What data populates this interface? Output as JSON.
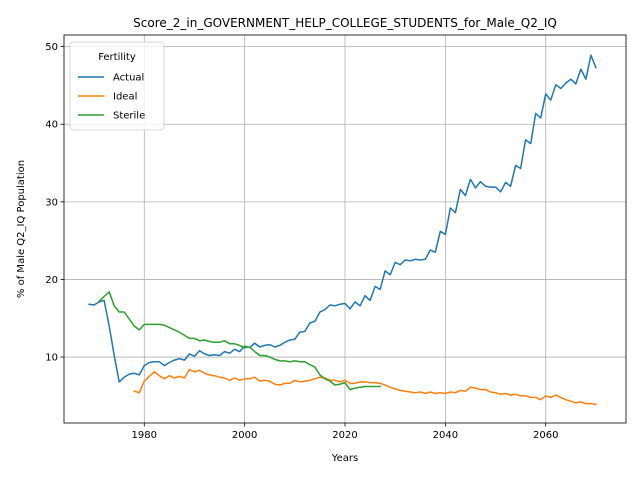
{
  "chart_data": {
    "type": "line",
    "title": "Score_2_in_GOVERNMENT_HELP_COLLEGE_STUDENTS_for_Male_Q2_IQ",
    "xlabel": "Years",
    "ylabel": "% of Male Q2_IQ Population",
    "xlim": [
      1964,
      2076
    ],
    "ylim": [
      1.5,
      51.5
    ],
    "xticks": [
      1980,
      2000,
      2020,
      2040,
      2060
    ],
    "yticks": [
      10,
      20,
      30,
      40,
      50
    ],
    "grid": true,
    "legend": {
      "title": "Fertility",
      "position": "top-left"
    },
    "series": [
      {
        "name": "Actual",
        "color": "#1f77b4",
        "x": [
          1969,
          1970,
          1971,
          1972,
          1973,
          1974,
          1975,
          1976,
          1977,
          1978,
          1979,
          1980,
          1981,
          1982,
          1983,
          1984,
          1985,
          1986,
          1987,
          1988,
          1989,
          1990,
          1991,
          1992,
          1993,
          1994,
          1995,
          1996,
          1997,
          1998,
          1999,
          2000,
          2001,
          2002,
          2003,
          2004,
          2005,
          2006,
          2007,
          2008,
          2009,
          2010,
          2011,
          2012,
          2013,
          2014,
          2015,
          2016,
          2017,
          2018,
          2019,
          2020,
          2021,
          2022,
          2023,
          2024,
          2025,
          2026,
          2027,
          2028,
          2029,
          2030,
          2031,
          2032,
          2033,
          2034,
          2035,
          2036,
          2037,
          2038,
          2039,
          2040,
          2041,
          2042,
          2043,
          2044,
          2045,
          2046,
          2047,
          2048,
          2049,
          2050,
          2051,
          2052,
          2053,
          2054,
          2055,
          2056,
          2057,
          2058,
          2059,
          2060,
          2061,
          2062,
          2063,
          2064,
          2065,
          2066,
          2067,
          2068,
          2069,
          2070
        ],
        "y": [
          16.8,
          16.7,
          17.1,
          17.3,
          14.0,
          10.2,
          6.8,
          7.4,
          7.8,
          7.9,
          7.7,
          8.9,
          9.3,
          9.4,
          9.4,
          8.9,
          9.3,
          9.6,
          9.8,
          9.6,
          10.4,
          10.1,
          10.8,
          10.4,
          10.2,
          10.3,
          10.2,
          10.7,
          10.5,
          11.0,
          10.7,
          11.4,
          11.2,
          11.8,
          11.3,
          11.5,
          11.6,
          11.3,
          11.5,
          11.9,
          12.2,
          12.3,
          13.2,
          13.3,
          14.4,
          14.6,
          15.8,
          16.1,
          16.7,
          16.6,
          16.8,
          16.9,
          16.2,
          17.1,
          16.6,
          17.9,
          17.3,
          19.1,
          18.7,
          21.1,
          20.6,
          22.2,
          21.9,
          22.5,
          22.4,
          22.6,
          22.5,
          22.6,
          23.8,
          23.5,
          26.2,
          25.8,
          29.2,
          28.6,
          31.6,
          30.8,
          32.9,
          31.8,
          32.6,
          32.0,
          31.9,
          31.9,
          31.3,
          32.5,
          32.0,
          34.7,
          34.3,
          38.0,
          37.5,
          41.4,
          40.8,
          43.9,
          43.1,
          45.1,
          44.6,
          45.3,
          45.8,
          45.2,
          47.1,
          45.8,
          48.9,
          47.3
        ]
      },
      {
        "name": "Ideal",
        "color": "#ff7f0e",
        "x": [
          1978,
          1979,
          1980,
          1981,
          1982,
          1983,
          1984,
          1985,
          1986,
          1987,
          1988,
          1989,
          1990,
          1991,
          1992,
          1993,
          1994,
          1995,
          1996,
          1997,
          1998,
          1999,
          2000,
          2001,
          2002,
          2003,
          2004,
          2005,
          2006,
          2007,
          2008,
          2009,
          2010,
          2011,
          2012,
          2013,
          2014,
          2015,
          2016,
          2017,
          2018,
          2019,
          2020,
          2021,
          2022,
          2023,
          2024,
          2025,
          2026,
          2027,
          2028,
          2029,
          2030,
          2031,
          2032,
          2033,
          2034,
          2035,
          2036,
          2037,
          2038,
          2039,
          2040,
          2041,
          2042,
          2043,
          2044,
          2045,
          2046,
          2047,
          2048,
          2049,
          2050,
          2051,
          2052,
          2053,
          2054,
          2055,
          2056,
          2057,
          2058,
          2059,
          2060,
          2061,
          2062,
          2063,
          2064,
          2065,
          2066,
          2067,
          2068,
          2069,
          2070
        ],
        "y": [
          5.6,
          5.4,
          6.9,
          7.5,
          8.1,
          7.6,
          7.2,
          7.6,
          7.3,
          7.5,
          7.3,
          8.4,
          8.1,
          8.3,
          7.9,
          7.7,
          7.6,
          7.4,
          7.3,
          7.0,
          7.3,
          7.0,
          7.2,
          7.2,
          7.4,
          6.9,
          7.0,
          6.9,
          6.5,
          6.4,
          6.6,
          6.6,
          7.0,
          6.8,
          6.9,
          7.0,
          7.2,
          7.4,
          7.3,
          7.0,
          7.0,
          6.8,
          7.0,
          6.6,
          6.6,
          6.8,
          6.8,
          6.7,
          6.7,
          6.6,
          6.4,
          6.1,
          5.9,
          5.7,
          5.6,
          5.5,
          5.4,
          5.5,
          5.3,
          5.5,
          5.3,
          5.4,
          5.3,
          5.5,
          5.4,
          5.7,
          5.6,
          6.1,
          6.0,
          5.8,
          5.8,
          5.5,
          5.4,
          5.2,
          5.3,
          5.1,
          5.2,
          5.0,
          5.0,
          4.8,
          4.8,
          4.5,
          5.0,
          4.8,
          5.1,
          4.8,
          4.5,
          4.3,
          4.1,
          4.2,
          4.0,
          4.0,
          3.9
        ]
      },
      {
        "name": "Sterile",
        "color": "#2ca02c",
        "x": [
          1971,
          1972,
          1973,
          1974,
          1975,
          1976,
          1977,
          1978,
          1979,
          1980,
          1981,
          1982,
          1983,
          1984,
          1985,
          1986,
          1987,
          1988,
          1989,
          1990,
          1991,
          1992,
          1993,
          1994,
          1995,
          1996,
          1997,
          1998,
          1999,
          2000,
          2001,
          2002,
          2003,
          2004,
          2005,
          2006,
          2007,
          2008,
          2009,
          2010,
          2011,
          2012,
          2013,
          2014,
          2015,
          2016,
          2017,
          2018,
          2019,
          2020,
          2021,
          2022,
          2023,
          2024,
          2025,
          2026,
          2027
        ],
        "y": [
          17.2,
          17.8,
          18.4,
          16.6,
          15.8,
          15.8,
          14.9,
          14.0,
          13.5,
          14.2,
          14.2,
          14.2,
          14.2,
          14.1,
          13.8,
          13.5,
          13.2,
          12.8,
          12.4,
          12.4,
          12.1,
          12.2,
          12.0,
          11.9,
          11.9,
          12.1,
          11.7,
          11.7,
          11.5,
          11.2,
          11.3,
          10.7,
          10.2,
          10.2,
          10.0,
          9.7,
          9.5,
          9.5,
          9.4,
          9.5,
          9.4,
          9.4,
          9.0,
          8.7,
          7.7,
          7.2,
          6.9,
          6.4,
          6.5,
          6.7,
          5.8,
          6.0,
          6.1,
          6.2,
          6.2,
          6.2,
          6.2
        ]
      }
    ]
  }
}
